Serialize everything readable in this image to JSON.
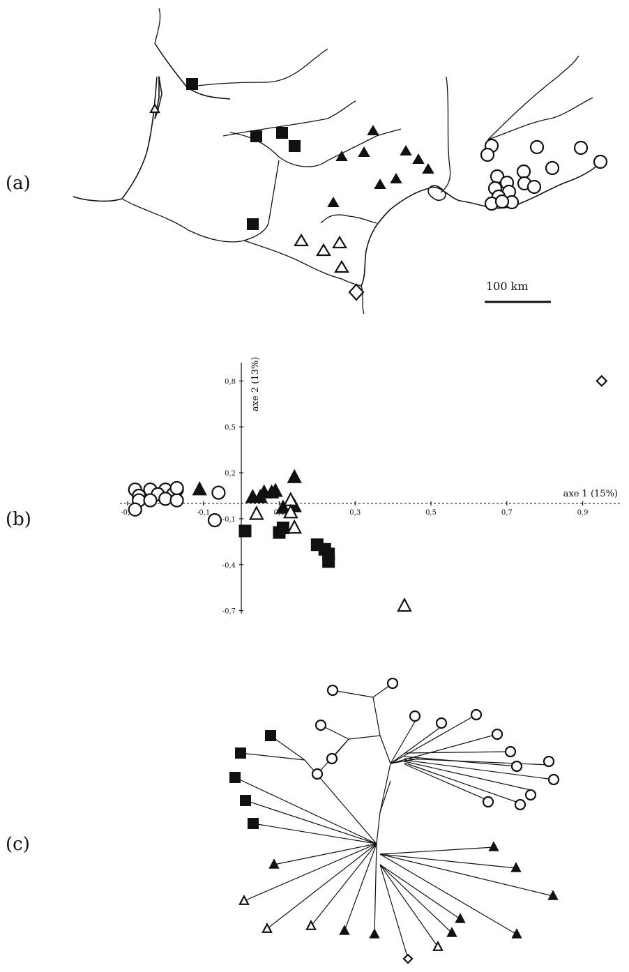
{
  "panels": {
    "a": {
      "label": "(a)",
      "scale_label": "100 km"
    },
    "b": {
      "label": "(b)"
    },
    "c": {
      "label": "(c)"
    }
  },
  "map_groups": {
    "filled_square": 6,
    "filled_triangle": 13,
    "open_triangle": 5,
    "open_circle": 20,
    "open_diamond": 1
  },
  "chart_data": {
    "type": "scatter",
    "xlabel": "axe 1 (15%)",
    "ylabel": "axe 2 (13%)",
    "x_ticks": [
      "-0,3",
      "-0,1",
      "0,1",
      "0,3",
      "0,5",
      "0,7",
      "0,9"
    ],
    "y_ticks": [
      "0,8",
      "0,5",
      "0,2",
      "-0,1",
      "-0,4",
      "-0,7"
    ],
    "xlim": [
      -0.32,
      1.0
    ],
    "ylim": [
      -0.72,
      0.92
    ],
    "series": [
      {
        "marker": "open_circle",
        "points": [
          [
            -0.28,
            0.09
          ],
          [
            -0.24,
            0.09
          ],
          [
            -0.2,
            0.09
          ],
          [
            -0.17,
            0.09
          ],
          [
            -0.27,
            0.05
          ],
          [
            -0.22,
            0.06
          ],
          [
            -0.18,
            0.06
          ],
          [
            -0.27,
            0.02
          ],
          [
            -0.2,
            0.03
          ],
          [
            -0.17,
            0.02
          ],
          [
            -0.28,
            -0.04
          ],
          [
            -0.24,
            0.02
          ],
          [
            -0.17,
            0.1
          ],
          [
            -0.06,
            0.07
          ],
          [
            -0.07,
            -0.11
          ]
        ]
      },
      {
        "marker": "filled_triangle",
        "points": [
          [
            -0.11,
            0.09
          ],
          [
            0.03,
            0.04
          ],
          [
            0.05,
            0.04
          ],
          [
            0.06,
            0.07
          ],
          [
            0.08,
            0.07
          ],
          [
            0.09,
            0.08
          ],
          [
            0.14,
            0.17
          ],
          [
            0.11,
            -0.03
          ],
          [
            0.14,
            -0.02
          ]
        ]
      },
      {
        "marker": "open_triangle",
        "points": [
          [
            0.04,
            -0.07
          ],
          [
            0.13,
            0.02
          ],
          [
            0.13,
            -0.06
          ],
          [
            0.14,
            -0.16
          ],
          [
            0.43,
            -0.67
          ]
        ]
      },
      {
        "marker": "filled_square",
        "points": [
          [
            0.01,
            -0.18
          ],
          [
            0.1,
            -0.19
          ],
          [
            0.11,
            -0.16
          ],
          [
            0.2,
            -0.27
          ],
          [
            0.22,
            -0.3
          ],
          [
            0.23,
            -0.33
          ],
          [
            0.23,
            -0.38
          ]
        ]
      },
      {
        "marker": "open_diamond",
        "points": [
          [
            0.95,
            0.8
          ]
        ]
      }
    ]
  }
}
